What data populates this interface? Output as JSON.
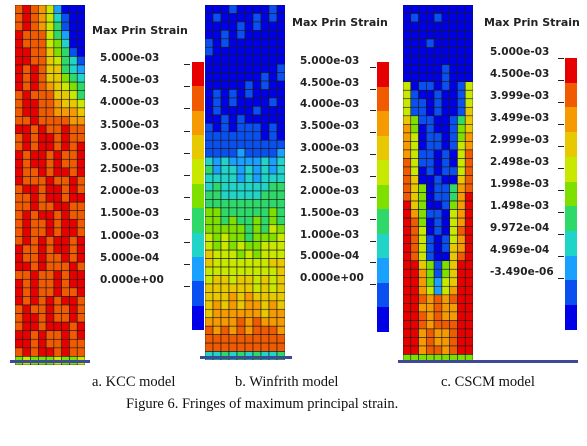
{
  "panels": [
    {
      "title": "Max Prin Strain",
      "ticks": [
        "5.000e-03",
        "4.500e-03",
        "4.000e-03",
        "3.500e-03",
        "3.000e-03",
        "2.500e-03",
        "2.000e-03",
        "1.500e-03",
        "1.000e-03",
        "5.000e-04",
        "0.000e+00"
      ],
      "caption": "a. KCC model"
    },
    {
      "title": "Max Prin Strain",
      "ticks": [
        "5.000e-03",
        "4.500e-03",
        "4.000e-03",
        "3.500e-03",
        "3.000e-03",
        "2.500e-03",
        "2.000e-03",
        "1.500e-03",
        "1.000e-03",
        "5.000e-04",
        "0.000e+00"
      ],
      "caption": "b. Winfrith model"
    },
    {
      "title": "Max Prin Strain",
      "ticks": [
        "5.000e-03",
        "4.500e-03",
        "3.999e-03",
        "3.499e-03",
        "2.999e-03",
        "2.498e-03",
        "1.998e-03",
        "1.498e-03",
        "9.972e-04",
        "4.969e-04",
        "-3.490e-06"
      ],
      "caption": "c. CSCM model"
    }
  ],
  "figure_caption": "Figure 6.    Fringes of maximum principal strain.",
  "colors": {
    "scale": [
      "#e60000",
      "#f05a00",
      "#f59a00",
      "#e8c800",
      "#c8e800",
      "#7fe000",
      "#2ed96a",
      "#20d4c8",
      "#1aa0ff",
      "#0a50f0",
      "#0000e6"
    ]
  }
}
